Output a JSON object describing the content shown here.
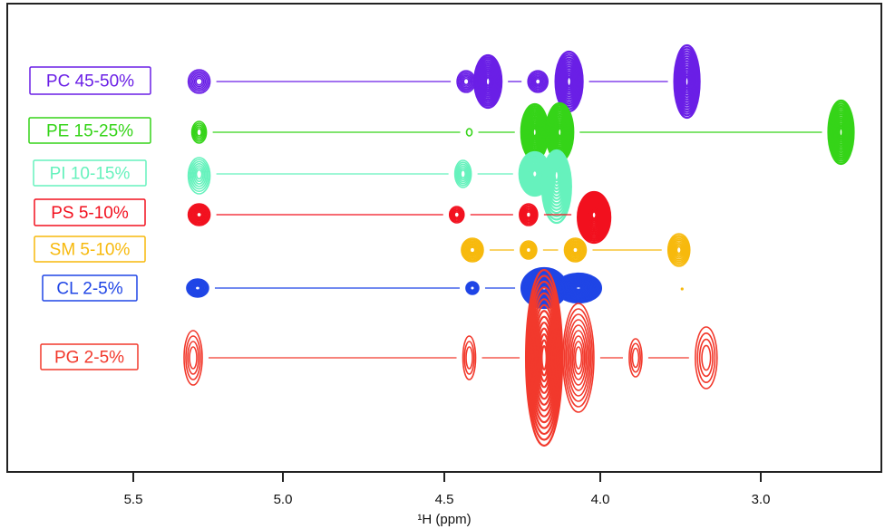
{
  "chart_data": {
    "type": "scatter",
    "subtype": "2D NMR contour plot",
    "title": "",
    "xlabel": "¹H (ppm)",
    "ylabel": "",
    "x_reversed": true,
    "x_ticks": [
      "5.5",
      "5.0",
      "4.5",
      "4.0",
      "3.0"
    ],
    "grid": false,
    "rows": [
      {
        "name": "PC 45-50%",
        "color": "#6a1fe6",
        "peaks_ppm": [
          5.28,
          4.43,
          4.36,
          4.2,
          4.1,
          3.46
        ]
      },
      {
        "name": "PE 15-25%",
        "color": "#35d418",
        "peaks_ppm": [
          5.28,
          4.42,
          4.21,
          4.13,
          2.5
        ]
      },
      {
        "name": "PI 10-15%",
        "color": "#66f2bd",
        "peaks_ppm": [
          5.28,
          4.44,
          4.21,
          4.14
        ]
      },
      {
        "name": "PS 5-10%",
        "color": "#f2101e",
        "peaks_ppm": [
          5.28,
          4.46,
          4.23,
          4.02
        ]
      },
      {
        "name": "SM 5-10%",
        "color": "#f7b90c",
        "peaks_ppm": [
          4.41,
          4.23,
          4.08,
          3.51
        ]
      },
      {
        "name": "CL 2-5%",
        "color": "#1f45e6",
        "peaks_ppm": [
          5.285,
          4.41,
          4.18,
          4.07
        ]
      },
      {
        "name": "PG 2-5%",
        "color": "#f2392c",
        "peaks_ppm": [
          5.3,
          4.42,
          4.18,
          4.07,
          3.78,
          3.34
        ]
      }
    ]
  }
}
